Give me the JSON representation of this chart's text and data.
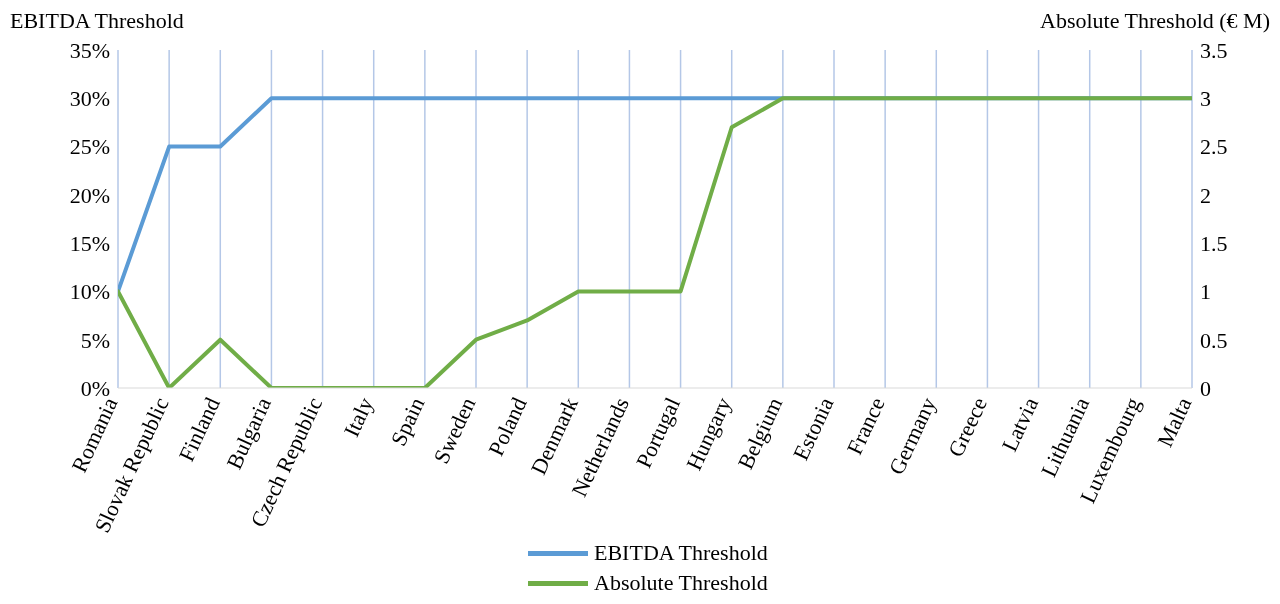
{
  "chart_data": {
    "type": "line",
    "ylabel": "EBITDA Threshold",
    "y2label": "Absolute Threshold (€ M)",
    "categories": [
      "Romania",
      "Slovak Republic",
      "Finland",
      "Bulgaria",
      "Czech Republic",
      "Italy",
      "Spain",
      "Sweden",
      "Poland",
      "Denmark",
      "Netherlands",
      "Portugal",
      "Hungary",
      "Belgium",
      "Estonia",
      "France",
      "Germany",
      "Greece",
      "Latvia",
      "Lithuania",
      "Luxembourg",
      "Malta"
    ],
    "series": [
      {
        "name": "EBITDA Threshold",
        "color": "#5b9bd5",
        "values": [
          10,
          25,
          25,
          30,
          30,
          30,
          30,
          30,
          30,
          30,
          30,
          30,
          30,
          30,
          30,
          30,
          30,
          30,
          30,
          30,
          30,
          30
        ]
      },
      {
        "name": "Absolute Threshold",
        "color": "#70ad47",
        "axis": "y2",
        "values": [
          1,
          0,
          0.5,
          0,
          0,
          0,
          0,
          0.5,
          0.7,
          1,
          1,
          1,
          2.7,
          3,
          3,
          3,
          3,
          3,
          3,
          3,
          3,
          3
        ]
      }
    ],
    "ylim": [
      0,
      35
    ],
    "yticks": [
      {
        "value": 0,
        "label": "0%"
      },
      {
        "value": 5,
        "label": "5%"
      },
      {
        "value": 10,
        "label": "10%"
      },
      {
        "value": 15,
        "label": "15%"
      },
      {
        "value": 20,
        "label": "20%"
      },
      {
        "value": 25,
        "label": "25%"
      },
      {
        "value": 30,
        "label": "30%"
      },
      {
        "value": 35,
        "label": "35%"
      }
    ],
    "y2lim": [
      0,
      3.5
    ],
    "y2ticks": [
      0,
      0.5,
      1,
      1.5,
      2,
      2.5,
      3,
      3.5
    ],
    "grid": "x",
    "legend": "bottom",
    "marker": "none",
    "line_style": "solid"
  }
}
